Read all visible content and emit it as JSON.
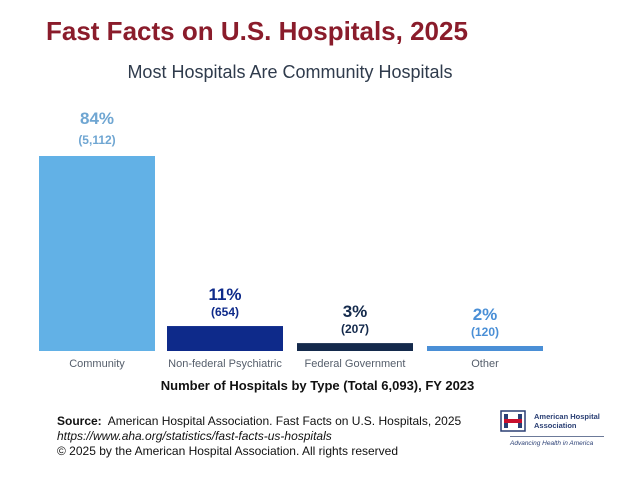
{
  "header": {
    "title": "Fast Facts on U.S. Hospitals, 2025",
    "subtitle": "Most Hospitals Are Community Hospitals"
  },
  "chart_data": {
    "type": "bar",
    "title": "Most Hospitals Are Community Hospitals",
    "xlabel": "Number of Hospitals by Type (Total 6,093), FY 2023",
    "ylabel": "",
    "categories": [
      "Community",
      "Non-federal Psychiatric",
      "Federal Government",
      "Other"
    ],
    "values": [
      5112,
      654,
      207,
      120
    ],
    "percent_labels": [
      "84%",
      "11%",
      "3%",
      "2%"
    ],
    "count_labels": [
      "(5,112)",
      "(654)",
      "(207)",
      "(120)"
    ],
    "colors": [
      "#62b1e6",
      "#0e2a8a",
      "#142a4c",
      "#4a8fd6"
    ],
    "percent_label_colors": [
      "#6fa6d2",
      "#0e2a8a",
      "#142a4c",
      "#4a8fd6"
    ],
    "count_label_colors": [
      "#6fa6d2",
      "#0e2a8a",
      "#142a4c",
      "#4a8fd6"
    ],
    "ylim": [
      0,
      5112
    ],
    "grid": false
  },
  "caption": "Number of Hospitals by Type (Total 6,093), FY 2023",
  "source": {
    "label": "Source:",
    "text": "American Hospital Association.  Fast Facts on U.S. Hospitals, 2025",
    "url": "https://www.aha.org/statistics/fast-facts-us-hospitals",
    "copyright": "© 2025 by the American Hospital Association. All rights reserved"
  },
  "logo": {
    "name_line1": "American Hospital",
    "name_line2": "Association",
    "tagline": "Advancing Health in America",
    "icon": "aha-logo-icon"
  }
}
